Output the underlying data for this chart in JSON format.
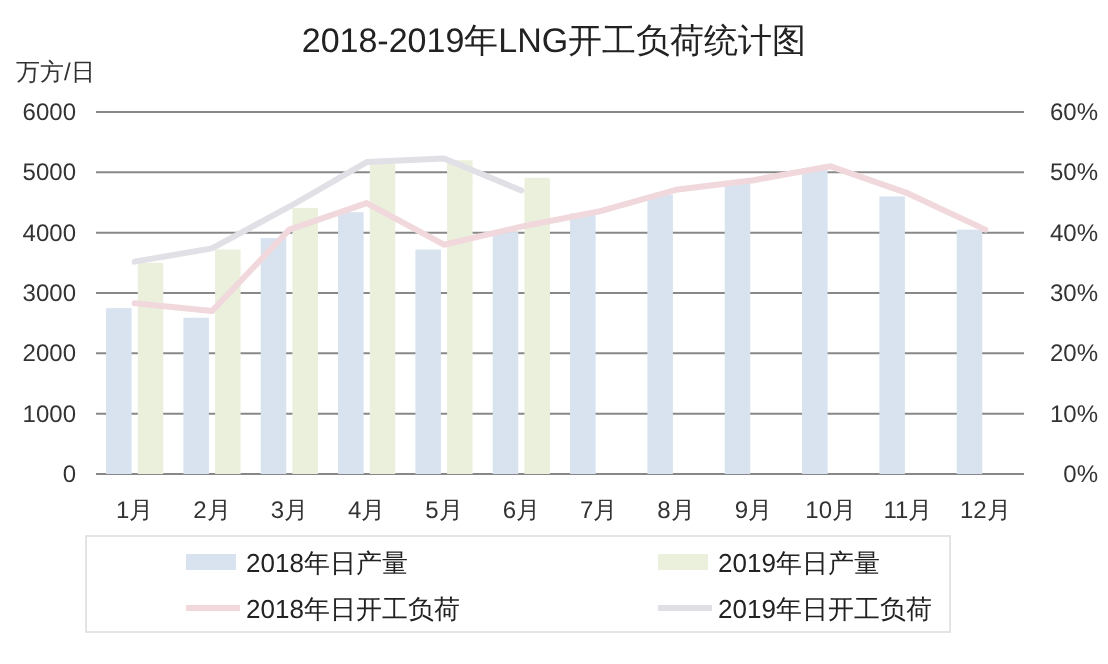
{
  "chart_data": {
    "type": "bar",
    "title": "2018-2019年LNG开工负荷统计图",
    "ylabel": "万方/日",
    "categories": [
      "1月",
      "2月",
      "3月",
      "4月",
      "5月",
      "6月",
      "7月",
      "8月",
      "9月",
      "10月",
      "11月",
      "12月"
    ],
    "series": [
      {
        "name": "2018年日产量",
        "color": "#d9e3f0",
        "values": [
          2750,
          2590,
          3910,
          4340,
          3720,
          4010,
          4320,
          4630,
          4820,
          5040,
          4600,
          4050
        ]
      },
      {
        "name": "2019年日产量",
        "color": "#ebf0dc",
        "values": [
          3500,
          3720,
          4410,
          5150,
          5200,
          4910,
          null,
          null,
          null,
          null,
          null,
          null
        ]
      },
      {
        "name": "2018年日开工负荷",
        "type": "line",
        "axis": "y2",
        "color": "#f0d8dc",
        "values": [
          28.3,
          27.0,
          40.5,
          44.9,
          38.0,
          41.0,
          43.5,
          47.1,
          48.7,
          51.0,
          46.5,
          40.5
        ]
      },
      {
        "name": "2019年日开工负荷",
        "type": "line",
        "axis": "y2",
        "color": "#e0e0e6",
        "values": [
          35.2,
          37.4,
          44.3,
          51.7,
          52.3,
          47.0,
          null,
          null,
          null,
          null,
          null,
          null
        ]
      }
    ],
    "ylim": [
      0,
      6000
    ],
    "yticks": [
      0,
      1000,
      2000,
      3000,
      4000,
      5000,
      6000
    ],
    "y2lim": [
      0,
      60
    ],
    "y2ticks": [
      {
        "value": 0,
        "label": "0%"
      },
      {
        "value": 10,
        "label": "10%"
      },
      {
        "value": 20,
        "label": "20%"
      },
      {
        "value": 30,
        "label": "30%"
      },
      {
        "value": 40,
        "label": "40%"
      },
      {
        "value": 50,
        "label": "50%"
      },
      {
        "value": 60,
        "label": "60%"
      }
    ],
    "grid": "y",
    "legend": "bottom",
    "marker": "none",
    "line_style": "solid"
  }
}
